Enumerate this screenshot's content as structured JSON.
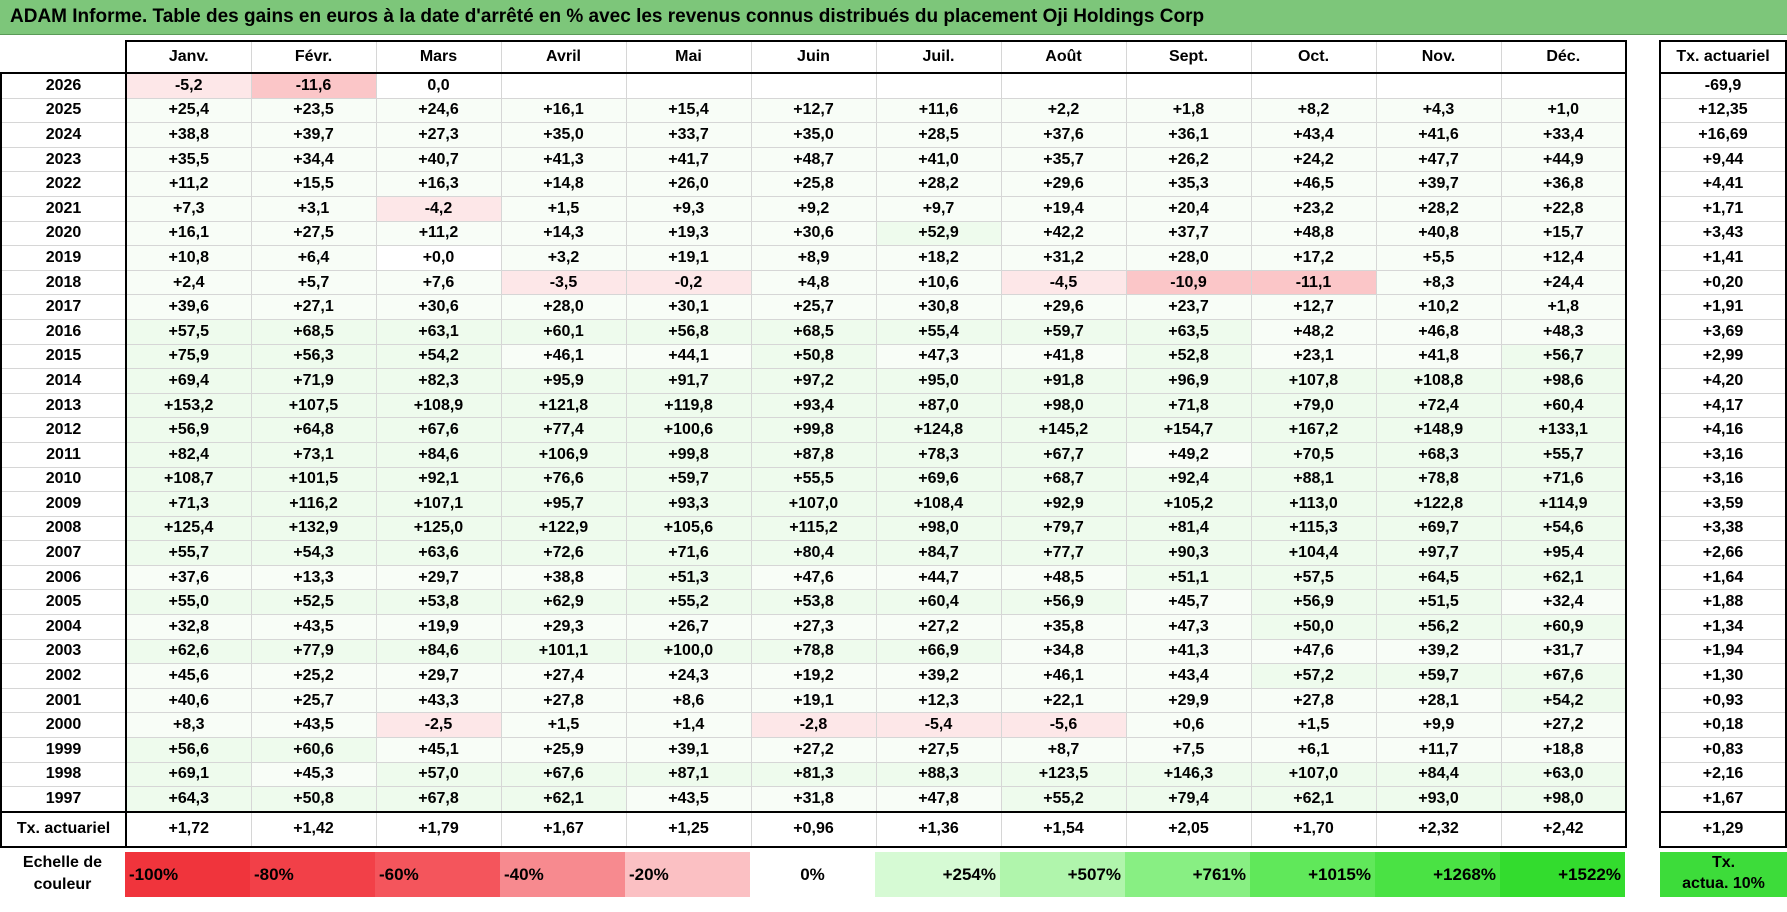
{
  "title": "ADAM Informe. Table des gains en euros à la date d'arrêté en % avec les revenus connus distribués du placement Oji Holdings Corp",
  "months": [
    "Janv.",
    "Févr.",
    "Mars",
    "Avril",
    "Mai",
    "Juin",
    "Juil.",
    "Août",
    "Sept.",
    "Oct.",
    "Nov.",
    "Déc."
  ],
  "side_header": "Tx. actuariel",
  "rows": [
    {
      "year": "2026",
      "values": [
        "-5,2",
        "-11,6",
        "0,0",
        "",
        "",
        "",
        "",
        "",
        "",
        "",
        "",
        ""
      ],
      "tx": "-69,9"
    },
    {
      "year": "2025",
      "values": [
        "+25,4",
        "+23,5",
        "+24,6",
        "+16,1",
        "+15,4",
        "+12,7",
        "+11,6",
        "+2,2",
        "+1,8",
        "+8,2",
        "+4,3",
        "+1,0"
      ],
      "tx": "+12,35"
    },
    {
      "year": "2024",
      "values": [
        "+38,8",
        "+39,7",
        "+27,3",
        "+35,0",
        "+33,7",
        "+35,0",
        "+28,5",
        "+37,6",
        "+36,1",
        "+43,4",
        "+41,6",
        "+33,4"
      ],
      "tx": "+16,69"
    },
    {
      "year": "2023",
      "values": [
        "+35,5",
        "+34,4",
        "+40,7",
        "+41,3",
        "+41,7",
        "+48,7",
        "+41,0",
        "+35,7",
        "+26,2",
        "+24,2",
        "+47,7",
        "+44,9"
      ],
      "tx": "+9,44"
    },
    {
      "year": "2022",
      "values": [
        "+11,2",
        "+15,5",
        "+16,3",
        "+14,8",
        "+26,0",
        "+25,8",
        "+28,2",
        "+29,6",
        "+35,3",
        "+46,5",
        "+39,7",
        "+36,8"
      ],
      "tx": "+4,41"
    },
    {
      "year": "2021",
      "values": [
        "+7,3",
        "+3,1",
        "-4,2",
        "+1,5",
        "+9,3",
        "+9,2",
        "+9,7",
        "+19,4",
        "+20,4",
        "+23,2",
        "+28,2",
        "+22,8"
      ],
      "tx": "+1,71"
    },
    {
      "year": "2020",
      "values": [
        "+16,1",
        "+27,5",
        "+11,2",
        "+14,3",
        "+19,3",
        "+30,6",
        "+52,9",
        "+42,2",
        "+37,7",
        "+48,8",
        "+40,8",
        "+15,7"
      ],
      "tx": "+3,43"
    },
    {
      "year": "2019",
      "values": [
        "+10,8",
        "+6,4",
        "+0,0",
        "+3,2",
        "+19,1",
        "+8,9",
        "+18,2",
        "+31,2",
        "+28,0",
        "+17,2",
        "+5,5",
        "+12,4"
      ],
      "tx": "+1,41"
    },
    {
      "year": "2018",
      "values": [
        "+2,4",
        "+5,7",
        "+7,6",
        "-3,5",
        "-0,2",
        "+4,8",
        "+10,6",
        "-4,5",
        "-10,9",
        "-11,1",
        "+8,3",
        "+24,4"
      ],
      "tx": "+0,20"
    },
    {
      "year": "2017",
      "values": [
        "+39,6",
        "+27,1",
        "+30,6",
        "+28,0",
        "+30,1",
        "+25,7",
        "+30,8",
        "+29,6",
        "+23,7",
        "+12,7",
        "+10,2",
        "+1,8"
      ],
      "tx": "+1,91"
    },
    {
      "year": "2016",
      "values": [
        "+57,5",
        "+68,5",
        "+63,1",
        "+60,1",
        "+56,8",
        "+68,5",
        "+55,4",
        "+59,7",
        "+63,5",
        "+48,2",
        "+46,8",
        "+48,3"
      ],
      "tx": "+3,69"
    },
    {
      "year": "2015",
      "values": [
        "+75,9",
        "+56,3",
        "+54,2",
        "+46,1",
        "+44,1",
        "+50,8",
        "+47,3",
        "+41,8",
        "+52,8",
        "+23,1",
        "+41,8",
        "+56,7"
      ],
      "tx": "+2,99"
    },
    {
      "year": "2014",
      "values": [
        "+69,4",
        "+71,9",
        "+82,3",
        "+95,9",
        "+91,7",
        "+97,2",
        "+95,0",
        "+91,8",
        "+96,9",
        "+107,8",
        "+108,8",
        "+98,6"
      ],
      "tx": "+4,20"
    },
    {
      "year": "2013",
      "values": [
        "+153,2",
        "+107,5",
        "+108,9",
        "+121,8",
        "+119,8",
        "+93,4",
        "+87,0",
        "+98,0",
        "+71,8",
        "+79,0",
        "+72,4",
        "+60,4"
      ],
      "tx": "+4,17"
    },
    {
      "year": "2012",
      "values": [
        "+56,9",
        "+64,8",
        "+67,6",
        "+77,4",
        "+100,6",
        "+99,8",
        "+124,8",
        "+145,2",
        "+154,7",
        "+167,2",
        "+148,9",
        "+133,1"
      ],
      "tx": "+4,16"
    },
    {
      "year": "2011",
      "values": [
        "+82,4",
        "+73,1",
        "+84,6",
        "+106,9",
        "+99,8",
        "+87,8",
        "+78,3",
        "+67,7",
        "+49,2",
        "+70,5",
        "+68,3",
        "+55,7"
      ],
      "tx": "+3,16"
    },
    {
      "year": "2010",
      "values": [
        "+108,7",
        "+101,5",
        "+92,1",
        "+76,6",
        "+59,7",
        "+55,5",
        "+69,6",
        "+68,7",
        "+92,4",
        "+88,1",
        "+78,8",
        "+71,6"
      ],
      "tx": "+3,16"
    },
    {
      "year": "2009",
      "values": [
        "+71,3",
        "+116,2",
        "+107,1",
        "+95,7",
        "+93,3",
        "+107,0",
        "+108,4",
        "+92,9",
        "+105,2",
        "+113,0",
        "+122,8",
        "+114,9"
      ],
      "tx": "+3,59"
    },
    {
      "year": "2008",
      "values": [
        "+125,4",
        "+132,9",
        "+125,0",
        "+122,9",
        "+105,6",
        "+115,2",
        "+98,0",
        "+79,7",
        "+81,4",
        "+115,3",
        "+69,7",
        "+54,6"
      ],
      "tx": "+3,38"
    },
    {
      "year": "2007",
      "values": [
        "+55,7",
        "+54,3",
        "+63,6",
        "+72,6",
        "+71,6",
        "+80,4",
        "+84,7",
        "+77,7",
        "+90,3",
        "+104,4",
        "+97,7",
        "+95,4"
      ],
      "tx": "+2,66"
    },
    {
      "year": "2006",
      "values": [
        "+37,6",
        "+13,3",
        "+29,7",
        "+38,8",
        "+51,3",
        "+47,6",
        "+44,7",
        "+48,5",
        "+51,1",
        "+57,5",
        "+64,5",
        "+62,1"
      ],
      "tx": "+1,64"
    },
    {
      "year": "2005",
      "values": [
        "+55,0",
        "+52,5",
        "+53,8",
        "+62,9",
        "+55,2",
        "+53,8",
        "+60,4",
        "+56,9",
        "+45,7",
        "+56,9",
        "+51,5",
        "+32,4"
      ],
      "tx": "+1,88"
    },
    {
      "year": "2004",
      "values": [
        "+32,8",
        "+43,5",
        "+19,9",
        "+29,3",
        "+26,7",
        "+27,3",
        "+27,2",
        "+35,8",
        "+47,3",
        "+50,0",
        "+56,2",
        "+60,9"
      ],
      "tx": "+1,34"
    },
    {
      "year": "2003",
      "values": [
        "+62,6",
        "+77,9",
        "+84,6",
        "+101,1",
        "+100,0",
        "+78,8",
        "+66,9",
        "+34,8",
        "+41,3",
        "+47,6",
        "+39,2",
        "+31,7"
      ],
      "tx": "+1,94"
    },
    {
      "year": "2002",
      "values": [
        "+45,6",
        "+25,2",
        "+29,7",
        "+27,4",
        "+24,3",
        "+19,2",
        "+39,2",
        "+46,1",
        "+43,4",
        "+57,2",
        "+59,7",
        "+67,6"
      ],
      "tx": "+1,30"
    },
    {
      "year": "2001",
      "values": [
        "+40,6",
        "+25,7",
        "+43,3",
        "+27,8",
        "+8,6",
        "+19,1",
        "+12,3",
        "+22,1",
        "+29,9",
        "+27,8",
        "+28,1",
        "+54,2"
      ],
      "tx": "+0,93"
    },
    {
      "year": "2000",
      "values": [
        "+8,3",
        "+43,5",
        "-2,5",
        "+1,5",
        "+1,4",
        "-2,8",
        "-5,4",
        "-5,6",
        "+0,6",
        "+1,5",
        "+9,9",
        "+27,2"
      ],
      "tx": "+0,18"
    },
    {
      "year": "1999",
      "values": [
        "+56,6",
        "+60,6",
        "+45,1",
        "+25,9",
        "+39,1",
        "+27,2",
        "+27,5",
        "+8,7",
        "+7,5",
        "+6,1",
        "+11,7",
        "+18,8"
      ],
      "tx": "+0,83"
    },
    {
      "year": "1998",
      "values": [
        "+69,1",
        "+45,3",
        "+57,0",
        "+67,6",
        "+87,1",
        "+81,3",
        "+88,3",
        "+123,5",
        "+146,3",
        "+107,0",
        "+84,4",
        "+63,0"
      ],
      "tx": "+2,16"
    },
    {
      "year": "1997",
      "values": [
        "+64,3",
        "+50,8",
        "+67,8",
        "+62,1",
        "+43,5",
        "+31,8",
        "+47,8",
        "+55,2",
        "+79,4",
        "+62,1",
        "+93,0",
        "+98,0"
      ],
      "tx": "+1,67"
    }
  ],
  "footer": {
    "label": "Tx. actuariel",
    "values": [
      "+1,72",
      "+1,42",
      "+1,79",
      "+1,67",
      "+1,25",
      "+0,96",
      "+1,36",
      "+1,54",
      "+2,05",
      "+1,70",
      "+2,32",
      "+2,42"
    ],
    "total": "+1,29"
  },
  "scale": {
    "label_line1": "Echelle de",
    "label_line2": "couleur",
    "items": [
      {
        "label": "-100%",
        "color": "#f0343c"
      },
      {
        "label": "-80%",
        "color": "#f24048"
      },
      {
        "label": "-60%",
        "color": "#f4555c"
      },
      {
        "label": "-40%",
        "color": "#f78a8f"
      },
      {
        "label": "-20%",
        "color": "#fbc0c3"
      },
      {
        "label": "0%",
        "color": "#ffffff"
      },
      {
        "label": "+254%",
        "color": "#d6fad4"
      },
      {
        "label": "+507%",
        "color": "#b0f5ac"
      },
      {
        "label": "+761%",
        "color": "#88ef83"
      },
      {
        "label": "+1015%",
        "color": "#60e85a"
      },
      {
        "label": "+1268%",
        "color": "#4ae244"
      },
      {
        "label": "+1522%",
        "color": "#33dc2e"
      }
    ],
    "tx_line1": "Tx.",
    "tx_line2": "actua. 10%",
    "tx_color": "#3ddc3a"
  },
  "colors": {
    "title_bg": "#7dc67a",
    "neg_strong": "#fbc6c8",
    "neg_light": "#fde7e8",
    "pos_light": "#eefbed"
  }
}
